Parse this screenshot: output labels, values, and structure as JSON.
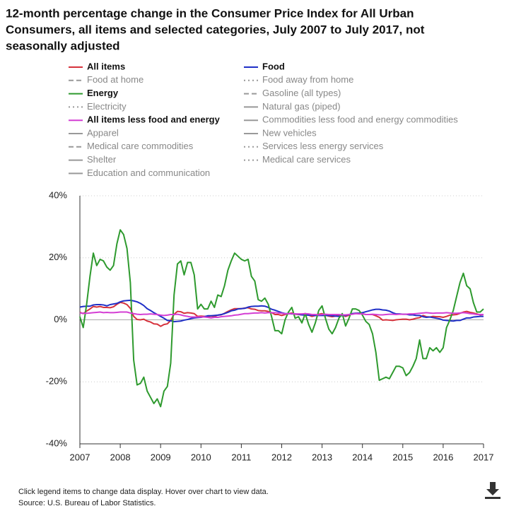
{
  "chart_data": {
    "type": "line",
    "title": [
      "12-month percentage change in the Consumer Price Index for All Urban",
      "Consumers, all items and selected categories, July 2007 to July 2017, not",
      "seasonally adjusted"
    ],
    "notes": [
      "Click legend items to change data display. Hover over chart to view data.",
      "Source: U.S. Bureau of Labor Statistics."
    ],
    "xlim": [
      2007.5,
      2017.5
    ],
    "xticks": [
      {
        "value": 2007.5,
        "label": "2007"
      },
      {
        "value": 2008.5,
        "label": "2008"
      },
      {
        "value": 2009.5,
        "label": "2009"
      },
      {
        "value": 2010.5,
        "label": "2010"
      },
      {
        "value": 2011.5,
        "label": "2011"
      },
      {
        "value": 2012.5,
        "label": "2012"
      },
      {
        "value": 2013.5,
        "label": "2013"
      },
      {
        "value": 2014.5,
        "label": "2014"
      },
      {
        "value": 2015.5,
        "label": "2015"
      },
      {
        "value": 2016.5,
        "label": "2016"
      },
      {
        "value": 2017.5,
        "label": "2017"
      }
    ],
    "ylim": [
      -40,
      40
    ],
    "yticks": [
      {
        "value": -40,
        "label": "-40%"
      },
      {
        "value": -20,
        "label": "-20%"
      },
      {
        "value": 0,
        "label": "0%"
      },
      {
        "value": 20,
        "label": "20%"
      },
      {
        "value": 40,
        "label": "40%"
      }
    ],
    "grid": true,
    "x": [
      2007.5,
      2007.583,
      2007.667,
      2007.75,
      2007.833,
      2007.917,
      2008,
      2008.083,
      2008.167,
      2008.25,
      2008.333,
      2008.417,
      2008.5,
      2008.583,
      2008.667,
      2008.75,
      2008.833,
      2008.917,
      2009,
      2009.083,
      2009.167,
      2009.25,
      2009.333,
      2009.417,
      2009.5,
      2009.583,
      2009.667,
      2009.75,
      2009.833,
      2009.917,
      2010,
      2010.083,
      2010.167,
      2010.25,
      2010.333,
      2010.417,
      2010.5,
      2010.583,
      2010.667,
      2010.75,
      2010.833,
      2010.917,
      2011,
      2011.083,
      2011.167,
      2011.25,
      2011.333,
      2011.417,
      2011.5,
      2011.583,
      2011.667,
      2011.75,
      2011.833,
      2011.917,
      2012,
      2012.083,
      2012.167,
      2012.25,
      2012.333,
      2012.417,
      2012.5,
      2012.583,
      2012.667,
      2012.75,
      2012.833,
      2012.917,
      2013,
      2013.083,
      2013.167,
      2013.25,
      2013.333,
      2013.417,
      2013.5,
      2013.583,
      2013.667,
      2013.75,
      2013.833,
      2013.917,
      2014,
      2014.083,
      2014.167,
      2014.25,
      2014.333,
      2014.417,
      2014.5,
      2014.583,
      2014.667,
      2014.75,
      2014.833,
      2014.917,
      2015,
      2015.083,
      2015.167,
      2015.25,
      2015.333,
      2015.417,
      2015.5,
      2015.583,
      2015.667,
      2015.75,
      2015.833,
      2015.917,
      2016,
      2016.083,
      2016.167,
      2016.25,
      2016.333,
      2016.417,
      2016.5,
      2016.583,
      2016.667,
      2016.75,
      2016.833,
      2016.917,
      2017,
      2017.083,
      2017.167,
      2017.25,
      2017.333,
      2017.417,
      2017.5
    ],
    "series": [
      {
        "name": "All items",
        "color": "#d6323c",
        "dash": "solid",
        "values": [
          2.4,
          2,
          2.8,
          3.5,
          4.3,
          4.1,
          4.3,
          4,
          4,
          3.9,
          4.2,
          5,
          5.6,
          5.4,
          4.9,
          3.7,
          1.1,
          0.1,
          0,
          0.2,
          -0.4,
          -0.7,
          -1.3,
          -1.4,
          -2.1,
          -1.5,
          -1.3,
          -0.2,
          1.8,
          2.7,
          2.6,
          2.1,
          2.3,
          2.2,
          2,
          1.1,
          1.2,
          1.1,
          1.1,
          1.2,
          1.1,
          1.5,
          1.6,
          2.1,
          2.7,
          3.2,
          3.6,
          3.6,
          3.6,
          3.8,
          3.9,
          3.5,
          3.4,
          3,
          2.9,
          2.9,
          2.7,
          2.3,
          1.7,
          1.7,
          1.4,
          1.7,
          2,
          2.2,
          1.8,
          1.7,
          1.6,
          2,
          1.5,
          1.1,
          1.4,
          1.8,
          2,
          1.5,
          1.2,
          1,
          1.2,
          1.5,
          1.6,
          1.1,
          1.5,
          2,
          2.1,
          2.1,
          2,
          1.7,
          1.7,
          1.7,
          1.3,
          0.8,
          -0.1,
          0,
          -0.1,
          -0.2,
          0,
          0.1,
          0.2,
          0.2,
          0,
          0.2,
          0.5,
          0.7,
          1.4,
          1,
          0.9,
          1.1,
          1,
          1,
          0.8,
          1.1,
          1.5,
          1.6,
          1.7,
          2.1,
          2.5,
          2.7,
          2.4,
          2.2,
          1.9,
          1.6,
          1.7
        ]
      },
      {
        "name": "Food",
        "color": "#1f2fc7",
        "dash": "solid",
        "values": [
          4.1,
          4.3,
          4.4,
          4.4,
          4.8,
          4.9,
          4.9,
          4.8,
          4.5,
          4.9,
          5.1,
          5.3,
          5.8,
          6.1,
          6.2,
          6.3,
          6.1,
          5.8,
          5.3,
          4.6,
          3.6,
          3,
          2.3,
          1.7,
          1.1,
          0.5,
          -0.2,
          -0.3,
          -0.6,
          -0.5,
          -0.4,
          -0.1,
          0.1,
          0.4,
          0.6,
          0.7,
          0.8,
          1,
          1.3,
          1.3,
          1.4,
          1.5,
          1.7,
          2,
          2.4,
          2.9,
          3.1,
          3.5,
          3.6,
          3.7,
          4.1,
          4.3,
          4.4,
          4.4,
          4.5,
          4.4,
          4,
          3.4,
          3.1,
          2.7,
          2.3,
          2,
          2,
          1.9,
          1.9,
          1.8,
          1.6,
          1.5,
          1.5,
          1.5,
          1.4,
          1.4,
          1.4,
          1.4,
          1.4,
          1.3,
          1.2,
          1.1,
          1.4,
          1.4,
          1.7,
          2,
          2.1,
          2.1,
          2.3,
          2.6,
          2.9,
          3.2,
          3.4,
          3.4,
          3.2,
          3.1,
          2.8,
          2.3,
          1.9,
          1.9,
          1.8,
          1.8,
          1.6,
          1.6,
          1.4,
          1.4,
          1,
          0.8,
          0.9,
          0.7,
          0.5,
          0.3,
          -0.1,
          -0.2,
          -0.3,
          -0.4,
          -0.2,
          -0.2,
          0.2,
          0.6,
          0.6,
          0.9,
          1,
          1.1,
          1.1
        ]
      },
      {
        "name": "Food at home",
        "color": "#999999",
        "dash": "dashed"
      },
      {
        "name": "Food away from home",
        "color": "#999999",
        "dash": "dotted"
      },
      {
        "name": "Energy",
        "color": "#2e9a2e",
        "dash": "solid",
        "values": [
          1,
          -2.5,
          5,
          14,
          21.5,
          17.5,
          19.5,
          19,
          17,
          16,
          17.5,
          24.5,
          29,
          27.5,
          23,
          12,
          -13,
          -21,
          -20.5,
          -18.5,
          -23,
          -25,
          -27,
          -25.5,
          -28,
          -23,
          -21.5,
          -14,
          8,
          18,
          19,
          14.5,
          18.5,
          18.5,
          14.5,
          3.5,
          5,
          3.5,
          3.5,
          6,
          4,
          8,
          7.5,
          11,
          16,
          19,
          21.5,
          20.5,
          19.5,
          19,
          19.5,
          14,
          12.5,
          6.5,
          6,
          7,
          5,
          1,
          -3.5,
          -3.5,
          -4.5,
          0,
          2.5,
          4,
          0.5,
          1,
          -1,
          2,
          -1.5,
          -4,
          -1,
          3,
          4.5,
          0.5,
          -3,
          -4.5,
          -2.5,
          0.5,
          2,
          -2,
          0.5,
          3.5,
          3.5,
          3,
          1.5,
          -0.5,
          -1.5,
          -4.5,
          -10.5,
          -19.5,
          -19,
          -18.5,
          -19,
          -17,
          -15,
          -15,
          -15.5,
          -18,
          -17,
          -15,
          -12.5,
          -6.5,
          -12.5,
          -12.5,
          -9,
          -10,
          -9,
          -10.5,
          -9,
          -2.5,
          0,
          3,
          7.5,
          12,
          15,
          11,
          10,
          5.5,
          2.5,
          2.5,
          3.5
        ]
      },
      {
        "name": "Gasoline (all types)",
        "color": "#999999",
        "dash": "dashed"
      },
      {
        "name": "Electricity",
        "color": "#999999",
        "dash": "dotted"
      },
      {
        "name": "Natural gas (piped)",
        "color": "#999999",
        "dash": "solid"
      },
      {
        "name": "All items less food and energy",
        "color": "#d43fd4",
        "dash": "solid",
        "values": [
          2.2,
          2.1,
          2.1,
          2.2,
          2.3,
          2.4,
          2.5,
          2.3,
          2.4,
          2.3,
          2.3,
          2.4,
          2.5,
          2.5,
          2.5,
          2.2,
          2,
          1.8,
          1.7,
          1.8,
          1.8,
          1.9,
          1.8,
          1.7,
          1.5,
          1.4,
          1.5,
          1.7,
          1.7,
          1.8,
          1.6,
          1.3,
          1.1,
          0.9,
          0.9,
          0.9,
          0.9,
          0.9,
          0.8,
          0.6,
          0.8,
          0.8,
          1,
          1.1,
          1.2,
          1.3,
          1.5,
          1.6,
          1.8,
          2,
          2,
          2.1,
          2.2,
          2.2,
          2.3,
          2.2,
          2.3,
          2.3,
          2.3,
          2.2,
          2.1,
          1.9,
          2,
          2,
          1.9,
          1.9,
          1.9,
          2,
          1.9,
          1.7,
          1.7,
          1.6,
          1.7,
          1.8,
          1.7,
          1.7,
          1.7,
          1.7,
          1.6,
          1.6,
          1.7,
          1.8,
          2,
          1.9,
          1.9,
          1.7,
          1.7,
          1.8,
          1.7,
          1.6,
          1.6,
          1.7,
          1.8,
          1.8,
          1.7,
          1.8,
          1.8,
          1.8,
          1.9,
          1.9,
          2,
          2.1,
          2.2,
          2.3,
          2.2,
          2.1,
          2.2,
          2.2,
          2.2,
          2.3,
          2.2,
          2.1,
          2.1,
          2.2,
          2.3,
          2.2,
          2,
          1.9,
          1.7,
          1.7,
          1.7
        ]
      },
      {
        "name": "Commodities less food and energy commodities",
        "color": "#999999",
        "dash": "solid"
      },
      {
        "name": "Apparel",
        "color": "#999999",
        "dash": "solid"
      },
      {
        "name": "New vehicles",
        "color": "#999999",
        "dash": "solid"
      },
      {
        "name": "Medical care commodities",
        "color": "#999999",
        "dash": "dashed"
      },
      {
        "name": "Services less energy services",
        "color": "#999999",
        "dash": "dotted"
      },
      {
        "name": "Shelter",
        "color": "#999999",
        "dash": "solid"
      },
      {
        "name": "Medical care services",
        "color": "#999999",
        "dash": "dotted"
      },
      {
        "name": "Education and communication",
        "color": "#999999",
        "dash": "solid"
      }
    ]
  }
}
